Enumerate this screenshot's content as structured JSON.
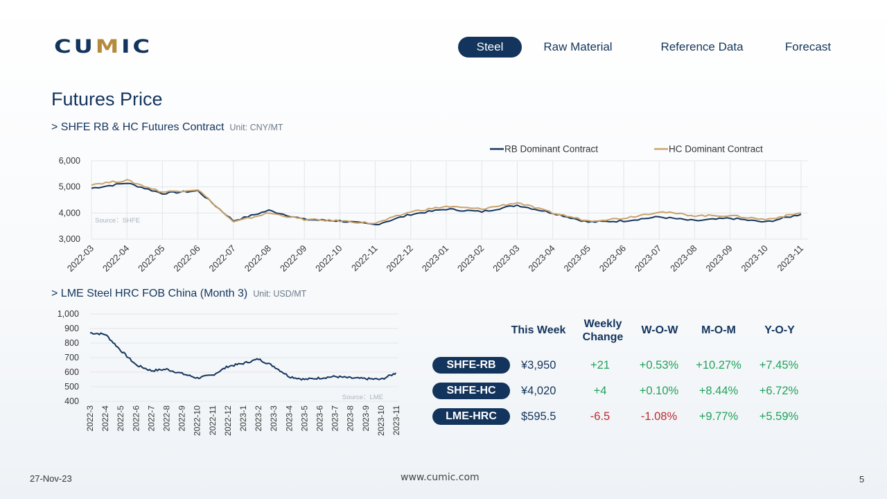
{
  "brand": {
    "logo_left": "CU",
    "logo_mid": "M",
    "logo_right": "IC"
  },
  "nav": {
    "items": [
      {
        "label": "Steel",
        "active": true
      },
      {
        "label": "Raw Material",
        "active": false
      },
      {
        "label": "Reference Data",
        "active": false
      },
      {
        "label": "Forecast",
        "active": false
      }
    ]
  },
  "page": {
    "title": "Futures Price"
  },
  "sections": {
    "shfe": {
      "title": "> SHFE RB & HC Futures Contract",
      "unit": "Unit: CNY/MT"
    },
    "lme": {
      "title": "> LME Steel HRC FOB China (Month 3)",
      "unit": "Unit: USD/MT"
    }
  },
  "colors": {
    "navy": "#13345c",
    "gold": "#c9a26a",
    "grid": "#e2e6ea",
    "positive": "#1fa35a",
    "negative": "#c0282d"
  },
  "chart_data": [
    {
      "type": "line",
      "source_note": "Source：SHFE",
      "yticks": [
        "3,000",
        "4,000",
        "5,000",
        "6,000"
      ],
      "ylim": [
        3000,
        6000
      ],
      "categories": [
        "2022-03",
        "2022-04",
        "2022-05",
        "2022-06",
        "2022-07",
        "2022-08",
        "2022-09",
        "2022-10",
        "2022-11",
        "2022-12",
        "2023-01",
        "2023-02",
        "2023-03",
        "2023-04",
        "2023-05",
        "2023-06",
        "2023-07",
        "2023-08",
        "2023-09",
        "2023-10",
        "2023-11"
      ],
      "legend_position": "top-right",
      "series": [
        {
          "name": "RB Dominant Contract",
          "color": "#13345c",
          "values": [
            4950,
            5150,
            4750,
            4850,
            3700,
            4100,
            3750,
            3700,
            3550,
            3950,
            4150,
            4050,
            4300,
            4000,
            3650,
            3700,
            3850,
            3700,
            3800,
            3650,
            3950
          ]
        },
        {
          "name": "HC Dominant Contract",
          "color": "#c9a26a",
          "values": [
            5100,
            5250,
            4800,
            4900,
            3650,
            4000,
            3750,
            3700,
            3600,
            4050,
            4250,
            4150,
            4400,
            4000,
            3700,
            3800,
            4050,
            3900,
            3900,
            3750,
            4000
          ]
        }
      ]
    },
    {
      "type": "line",
      "source_note": "Source：LME",
      "yticks": [
        "400",
        "500",
        "600",
        "700",
        "800",
        "900",
        "1,000"
      ],
      "ylim": [
        400,
        1000
      ],
      "categories": [
        "2022-3",
        "2022-4",
        "2022-5",
        "2022-6",
        "2022-7",
        "2022-8",
        "2022-9",
        "2022-10",
        "2022-11",
        "2022-12",
        "2023-1",
        "2023-2",
        "2023-3",
        "2023-4",
        "2023-5",
        "2023-6",
        "2023-7",
        "2023-8",
        "2023-9",
        "2023-10",
        "2023-11"
      ],
      "series": [
        {
          "color": "#13345c",
          "values": [
            870,
            860,
            750,
            650,
            610,
            620,
            590,
            560,
            580,
            640,
            660,
            690,
            640,
            570,
            550,
            560,
            570,
            560,
            555,
            550,
            595
          ]
        }
      ]
    }
  ],
  "summary": {
    "headers": {
      "this_week": "This Week",
      "weekly_change_1": "Weekly",
      "weekly_change_2": "Change",
      "wow": "W-O-W",
      "mom": "M-O-M",
      "yoy": "Y-O-Y"
    },
    "rows": [
      {
        "name": "SHFE-RB",
        "price": "¥3,950",
        "change": "+21",
        "wow": "+0.53%",
        "mom": "+10.27%",
        "yoy": "+7.45%"
      },
      {
        "name": "SHFE-HC",
        "price": "¥4,020",
        "change": "+4",
        "wow": "+0.10%",
        "mom": "+8.44%",
        "yoy": "+6.72%"
      },
      {
        "name": "LME-HRC",
        "price": "$595.5",
        "change": "-6.5",
        "wow": "-1.08%",
        "mom": "+9.77%",
        "yoy": "+5.59%"
      }
    ]
  },
  "footer": {
    "date": "27-Nov-23",
    "url": "www.cumic.com",
    "page": "5"
  }
}
